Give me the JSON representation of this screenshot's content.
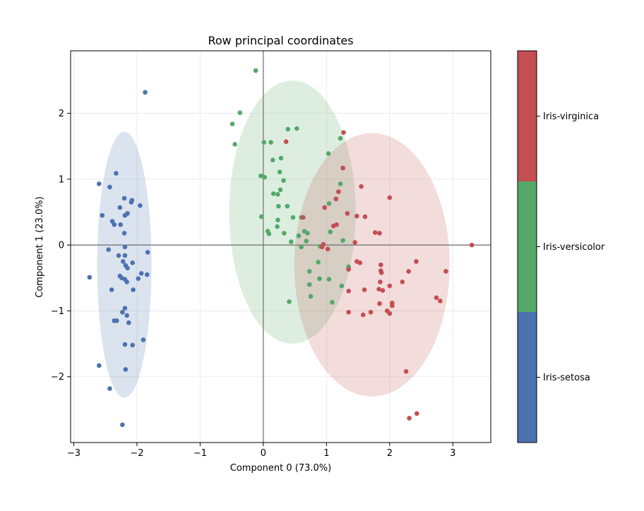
{
  "chart_data": {
    "type": "scatter",
    "title": "Row principal coordinates",
    "xlabel": "Component 0 (73.0%)",
    "ylabel": "Component 1 (23.0%)",
    "xlim": [
      -3.05,
      3.6
    ],
    "ylim": [
      -3.0,
      2.95
    ],
    "xticks": [
      -3,
      -2,
      -1,
      0,
      1,
      2,
      3
    ],
    "yticks": [
      -2,
      -1,
      0,
      1,
      2
    ],
    "grid": true,
    "colorbar": {
      "labels": [
        "Iris-setosa",
        "Iris-versicolor",
        "Iris-virginica"
      ],
      "colors": [
        "#4c72b0",
        "#55a868",
        "#c44e52"
      ]
    },
    "series": [
      {
        "name": "Iris-setosa",
        "color": "#4c72b0",
        "ellipse": {
          "cx": -2.2,
          "cy": -0.3,
          "rx": 0.43,
          "ry": 2.02
        },
        "points": [
          [
            -1.87,
            2.32
          ],
          [
            -2.33,
            1.09
          ],
          [
            -2.6,
            0.93
          ],
          [
            -2.43,
            0.88
          ],
          [
            -2.2,
            0.71
          ],
          [
            -2.08,
            0.68
          ],
          [
            -2.09,
            0.65
          ],
          [
            -1.95,
            0.6
          ],
          [
            -2.27,
            0.57
          ],
          [
            -2.15,
            0.48
          ],
          [
            -2.19,
            0.45
          ],
          [
            -2.55,
            0.45
          ],
          [
            -2.39,
            0.36
          ],
          [
            -2.36,
            0.31
          ],
          [
            -2.26,
            0.31
          ],
          [
            -2.2,
            0.18
          ],
          [
            -2.19,
            -0.03
          ],
          [
            -2.45,
            -0.07
          ],
          [
            -1.83,
            -0.11
          ],
          [
            -2.29,
            -0.16
          ],
          [
            -2.19,
            -0.16
          ],
          [
            -2.22,
            -0.25
          ],
          [
            -2.07,
            -0.27
          ],
          [
            -2.18,
            -0.31
          ],
          [
            -2.15,
            -0.35
          ],
          [
            -1.93,
            -0.43
          ],
          [
            -1.84,
            -0.45
          ],
          [
            -2.75,
            -0.49
          ],
          [
            -2.27,
            -0.47
          ],
          [
            -2.24,
            -0.5
          ],
          [
            -1.98,
            -0.51
          ],
          [
            -2.19,
            -0.52
          ],
          [
            -2.16,
            -0.56
          ],
          [
            -2.4,
            -0.68
          ],
          [
            -2.06,
            -0.68
          ],
          [
            -2.19,
            -0.96
          ],
          [
            -2.23,
            -1.02
          ],
          [
            -2.16,
            -1.07
          ],
          [
            -2.13,
            -1.18
          ],
          [
            -2.36,
            -1.15
          ],
          [
            -2.32,
            -1.15
          ],
          [
            -1.9,
            -1.44
          ],
          [
            -2.19,
            -1.51
          ],
          [
            -2.07,
            -1.52
          ],
          [
            -2.6,
            -1.83
          ],
          [
            -2.18,
            -1.89
          ],
          [
            -2.43,
            -2.18
          ],
          [
            -2.23,
            -2.73
          ]
        ]
      },
      {
        "name": "Iris-versicolor",
        "color": "#55a868",
        "ellipse": {
          "cx": 0.46,
          "cy": 0.5,
          "rx": 1.0,
          "ry": 2.0
        },
        "points": [
          [
            -0.12,
            2.65
          ],
          [
            -0.37,
            2.01
          ],
          [
            -0.49,
            1.84
          ],
          [
            0.53,
            1.77
          ],
          [
            0.39,
            1.76
          ],
          [
            -0.45,
            1.53
          ],
          [
            0.01,
            1.56
          ],
          [
            0.12,
            1.56
          ],
          [
            1.22,
            1.62
          ],
          [
            1.03,
            1.39
          ],
          [
            0.28,
            1.32
          ],
          [
            0.15,
            1.29
          ],
          [
            0.26,
            1.11
          ],
          [
            -0.04,
            1.05
          ],
          [
            0.02,
            1.03
          ],
          [
            0.32,
            0.98
          ],
          [
            1.22,
            0.93
          ],
          [
            0.27,
            0.84
          ],
          [
            0.16,
            0.78
          ],
          [
            0.23,
            0.77
          ],
          [
            1.04,
            0.63
          ],
          [
            0.24,
            0.59
          ],
          [
            0.38,
            0.59
          ],
          [
            -0.03,
            0.43
          ],
          [
            0.47,
            0.42
          ],
          [
            0.6,
            0.42
          ],
          [
            0.23,
            0.38
          ],
          [
            0.22,
            0.28
          ],
          [
            0.65,
            0.21
          ],
          [
            0.07,
            0.21
          ],
          [
            0.09,
            0.17
          ],
          [
            0.33,
            0.18
          ],
          [
            0.7,
            0.18
          ],
          [
            1.06,
            0.2
          ],
          [
            0.56,
            0.14
          ],
          [
            0.68,
            0.06
          ],
          [
            0.44,
            0.05
          ],
          [
            1.26,
            0.07
          ],
          [
            0.6,
            -0.03
          ],
          [
            0.9,
            -0.02
          ],
          [
            0.87,
            -0.26
          ],
          [
            1.35,
            -0.33
          ],
          [
            0.73,
            -0.4
          ],
          [
            0.89,
            -0.51
          ],
          [
            1.04,
            -0.52
          ],
          [
            0.73,
            -0.6
          ],
          [
            1.24,
            -0.62
          ],
          [
            0.75,
            -0.78
          ],
          [
            1.09,
            -0.87
          ],
          [
            0.41,
            -0.86
          ]
        ]
      },
      {
        "name": "Iris-virginica",
        "color": "#c44e52",
        "ellipse": {
          "cx": 1.72,
          "cy": -0.3,
          "rx": 1.23,
          "ry": 2.0
        },
        "points": [
          [
            1.27,
            1.71
          ],
          [
            0.36,
            1.57
          ],
          [
            1.26,
            1.17
          ],
          [
            1.55,
            0.89
          ],
          [
            1.19,
            0.81
          ],
          [
            1.15,
            0.7
          ],
          [
            2.0,
            0.72
          ],
          [
            0.97,
            0.57
          ],
          [
            1.33,
            0.48
          ],
          [
            1.48,
            0.44
          ],
          [
            1.61,
            0.43
          ],
          [
            0.63,
            0.42
          ],
          [
            1.11,
            0.29
          ],
          [
            1.16,
            0.31
          ],
          [
            1.77,
            0.19
          ],
          [
            1.84,
            0.18
          ],
          [
            1.45,
            0.04
          ],
          [
            0.95,
            0.01
          ],
          [
            0.93,
            -0.03
          ],
          [
            1.02,
            -0.06
          ],
          [
            3.3,
            0.0
          ],
          [
            1.48,
            -0.25
          ],
          [
            1.53,
            -0.27
          ],
          [
            2.42,
            -0.25
          ],
          [
            1.35,
            -0.37
          ],
          [
            1.86,
            -0.3
          ],
          [
            1.86,
            -0.39
          ],
          [
            1.87,
            -0.42
          ],
          [
            2.3,
            -0.4
          ],
          [
            2.89,
            -0.4
          ],
          [
            1.85,
            -0.56
          ],
          [
            2.2,
            -0.56
          ],
          [
            2.0,
            -0.62
          ],
          [
            1.35,
            -0.7
          ],
          [
            1.6,
            -0.68
          ],
          [
            1.83,
            -0.67
          ],
          [
            1.89,
            -0.69
          ],
          [
            2.74,
            -0.8
          ],
          [
            2.8,
            -0.85
          ],
          [
            1.84,
            -0.89
          ],
          [
            2.04,
            -0.88
          ],
          [
            2.04,
            -0.92
          ],
          [
            1.35,
            -1.02
          ],
          [
            1.7,
            -1.02
          ],
          [
            1.96,
            -1.0
          ],
          [
            2.0,
            -1.04
          ],
          [
            1.58,
            -1.06
          ],
          [
            2.26,
            -1.92
          ],
          [
            2.43,
            -2.56
          ],
          [
            2.31,
            -2.63
          ]
        ]
      }
    ]
  }
}
